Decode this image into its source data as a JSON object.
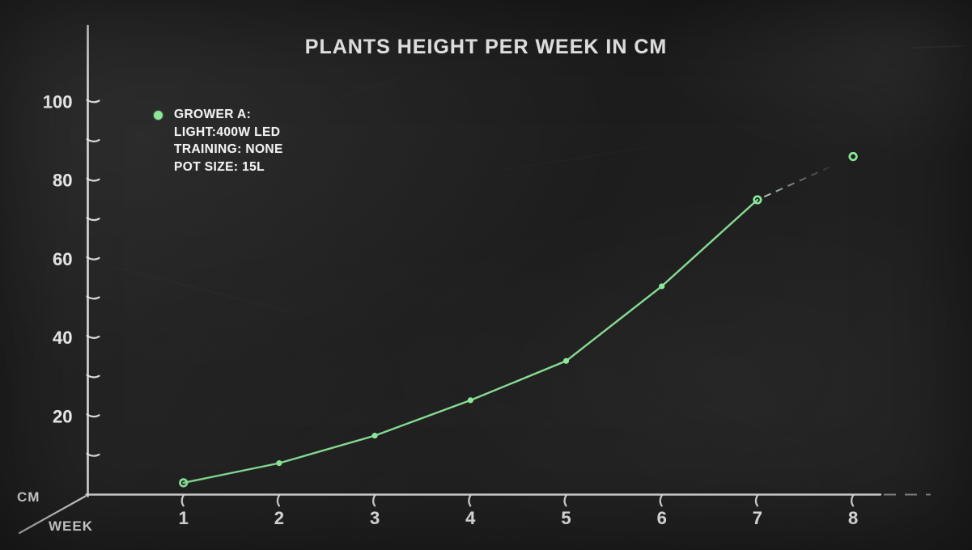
{
  "page": {
    "background_color": "#1f1f1f",
    "style": "chalkboard"
  },
  "chart_data": {
    "type": "line",
    "title": "PLANTS HEIGHT PER WEEK IN CM",
    "xlabel": "WEEK",
    "ylabel": "CM",
    "x_ticks": [
      1,
      2,
      3,
      4,
      5,
      6,
      7,
      8
    ],
    "y_tick_labels": [
      20,
      40,
      60,
      80,
      100
    ],
    "y_tick_minor_step": 10,
    "ylim": [
      0,
      100
    ],
    "xlim": [
      0,
      8.7
    ],
    "grid": false,
    "series": [
      {
        "name": "GROWER A",
        "x": [
          1,
          2,
          3,
          4,
          5,
          6,
          7,
          8
        ],
        "values": [
          3,
          8,
          15,
          24,
          34,
          53,
          75,
          86
        ],
        "color": "#8ce79a",
        "ring_marker_x": [
          1,
          7,
          8
        ],
        "dashed_from_x": 7
      }
    ],
    "legend": {
      "position": "top-left",
      "marker_color": "#8ce79a",
      "lines": [
        "GROWER A:",
        "LIGHT:400W LED",
        "TRAINING: NONE",
        "POT SIZE: 15L"
      ]
    },
    "colors": {
      "axis": "#ededed",
      "text": "#f4f4f4",
      "line": "#8ce79a",
      "dashed_fade": "rgba(214,238,220,0.8)"
    }
  }
}
